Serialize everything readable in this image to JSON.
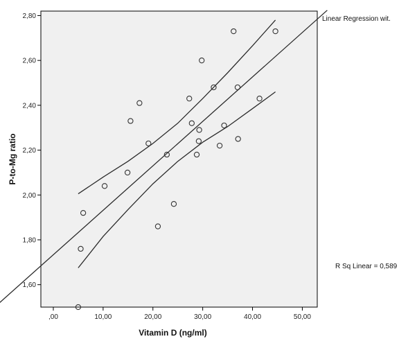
{
  "chart_data": {
    "type": "scatter",
    "title": "",
    "xlabel": "Vitamin D   (ng/ml)",
    "ylabel": "P-to-Mg  ratio",
    "xlim": [
      -2.5,
      53
    ],
    "ylim": [
      1.5,
      2.82
    ],
    "x_ticks": [
      0,
      10,
      20,
      30,
      40,
      50
    ],
    "x_tick_labels": [
      ",00",
      "10,00",
      "20,00",
      "30,00",
      "40,00",
      "50,00"
    ],
    "y_ticks": [
      1.6,
      1.8,
      2.0,
      2.2,
      2.4,
      2.6,
      2.8
    ],
    "y_tick_labels": [
      "1,60",
      "1,80",
      "2,00",
      "2,20",
      "2,40",
      "2,60",
      "2,80"
    ],
    "points": [
      {
        "x": 5.0,
        "y": 1.5
      },
      {
        "x": 5.5,
        "y": 1.76
      },
      {
        "x": 6.0,
        "y": 1.92
      },
      {
        "x": 10.3,
        "y": 2.04
      },
      {
        "x": 14.9,
        "y": 2.1
      },
      {
        "x": 15.5,
        "y": 2.33
      },
      {
        "x": 17.3,
        "y": 2.41
      },
      {
        "x": 19.1,
        "y": 2.23
      },
      {
        "x": 21.0,
        "y": 1.86
      },
      {
        "x": 22.8,
        "y": 2.18
      },
      {
        "x": 24.2,
        "y": 1.96
      },
      {
        "x": 27.3,
        "y": 2.43
      },
      {
        "x": 27.8,
        "y": 2.32
      },
      {
        "x": 28.8,
        "y": 2.18
      },
      {
        "x": 29.2,
        "y": 2.24
      },
      {
        "x": 29.3,
        "y": 2.29
      },
      {
        "x": 29.8,
        "y": 2.6
      },
      {
        "x": 32.2,
        "y": 2.48
      },
      {
        "x": 33.4,
        "y": 2.22
      },
      {
        "x": 34.3,
        "y": 2.31
      },
      {
        "x": 36.2,
        "y": 2.73
      },
      {
        "x": 37.0,
        "y": 2.48
      },
      {
        "x": 37.1,
        "y": 2.25
      },
      {
        "x": 41.4,
        "y": 2.43
      },
      {
        "x": 44.6,
        "y": 2.73
      }
    ],
    "regression_line": [
      [
        -2.5,
        1.684
      ],
      [
        53,
        2.784
      ]
    ],
    "ci_upper": [
      [
        5.0,
        2.005
      ],
      [
        10.0,
        2.08
      ],
      [
        15.0,
        2.15
      ],
      [
        20.0,
        2.23
      ],
      [
        25.0,
        2.32
      ],
      [
        30.0,
        2.43
      ],
      [
        35.0,
        2.545
      ],
      [
        40.0,
        2.665
      ],
      [
        44.6,
        2.78
      ]
    ],
    "ci_lower": [
      [
        5.0,
        1.675
      ],
      [
        10.0,
        1.815
      ],
      [
        15.0,
        1.935
      ],
      [
        20.0,
        2.05
      ],
      [
        25.0,
        2.15
      ],
      [
        30.0,
        2.235
      ],
      [
        35.0,
        2.305
      ],
      [
        40.0,
        2.385
      ],
      [
        44.6,
        2.46
      ]
    ],
    "annotations": {
      "top_right": "Linear Regression wit.",
      "r_squared": "R Sq Linear = 0,589"
    },
    "grid": false,
    "colors": {
      "plot_background": "#f0f0f0",
      "marker_stroke": "#333333",
      "line": "#2b2b2b"
    }
  }
}
